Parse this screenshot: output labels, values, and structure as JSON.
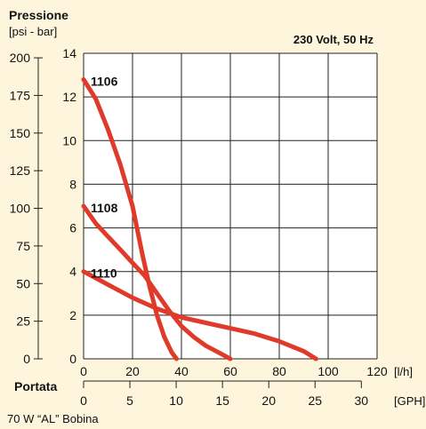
{
  "chart_data": {
    "type": "line",
    "title": "Pressione",
    "unit_label": "[psi - bar]",
    "subtitle": "230 Volt, 50 Hz",
    "xlabel": "Portata",
    "footer": "70 W “AL” Bobina",
    "x_lh": {
      "unit": "[l/h]",
      "ticks": [
        "0",
        "20",
        "40",
        "60",
        "80",
        "100",
        "120"
      ],
      "range": [
        0,
        120
      ]
    },
    "x_gph": {
      "unit": "[GPH]",
      "ticks": [
        "0",
        "5",
        "10",
        "15",
        "20",
        "25",
        "30"
      ],
      "range": [
        0,
        31.7
      ]
    },
    "y_bar": {
      "ticks": [
        "0",
        "2",
        "4",
        "6",
        "8",
        "10",
        "12",
        "14"
      ],
      "range": [
        0,
        14
      ]
    },
    "y_psi": {
      "ticks": [
        "0",
        "25",
        "50",
        "75",
        "100",
        "125",
        "150",
        "175",
        "200"
      ],
      "range": [
        0,
        203
      ]
    },
    "grid": true,
    "series": [
      {
        "name": "1106",
        "color": "#e03a2a",
        "x": [
          0,
          5,
          10,
          15,
          20,
          24,
          27,
          30,
          33,
          36,
          38
        ],
        "y": [
          12.8,
          11.9,
          10.5,
          8.9,
          7.0,
          4.8,
          3.3,
          2.0,
          1.0,
          0.3,
          0
        ]
      },
      {
        "name": "1108",
        "color": "#e03a2a",
        "x": [
          0,
          5,
          10,
          15,
          20,
          25,
          30,
          35,
          40,
          45,
          50,
          55,
          60
        ],
        "y": [
          7.0,
          6.2,
          5.6,
          5.0,
          4.4,
          3.8,
          3.0,
          2.2,
          1.5,
          1.0,
          0.6,
          0.3,
          0
        ]
      },
      {
        "name": "1110",
        "color": "#e03a2a",
        "x": [
          0,
          10,
          20,
          30,
          40,
          50,
          60,
          70,
          80,
          90,
          95
        ],
        "y": [
          4.0,
          3.4,
          2.8,
          2.3,
          1.9,
          1.65,
          1.4,
          1.15,
          0.8,
          0.35,
          0
        ]
      }
    ]
  }
}
